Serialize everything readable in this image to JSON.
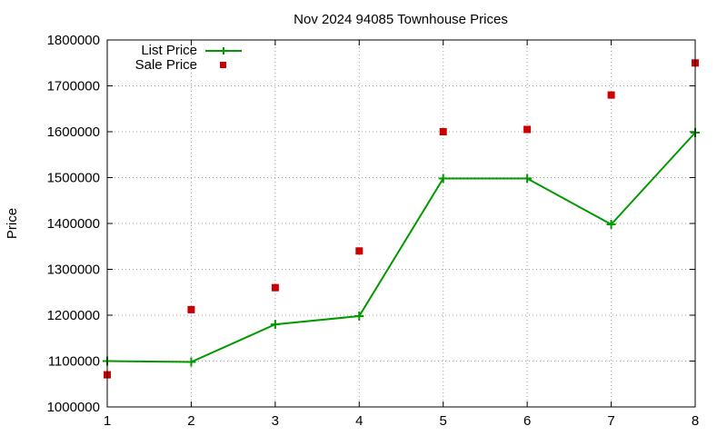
{
  "chart_data": {
    "type": "line",
    "title": "Nov 2024 94085 Townhouse Prices",
    "xlabel": "",
    "ylabel": "Price",
    "xlim": [
      1,
      8
    ],
    "ylim": [
      1000000,
      1800000
    ],
    "x_ticks": [
      "1",
      "2",
      "3",
      "4",
      "5",
      "6",
      "7",
      "8"
    ],
    "y_ticks": [
      "1000000",
      "1100000",
      "1200000",
      "1300000",
      "1400000",
      "1500000",
      "1600000",
      "1700000",
      "1800000"
    ],
    "grid": true,
    "legend_position": "top-left",
    "series": [
      {
        "name": "List Price",
        "style": "line-with-plus-markers",
        "color": "#009900",
        "x": [
          1,
          2,
          3,
          4,
          5,
          6,
          7,
          8
        ],
        "values": [
          1100000,
          1098000,
          1180000,
          1198000,
          1498000,
          1498000,
          1398000,
          1598000
        ]
      },
      {
        "name": "Sale Price",
        "style": "square-markers",
        "color": "#cc0000",
        "x": [
          1,
          2,
          3,
          4,
          5,
          6,
          7,
          8
        ],
        "values": [
          1070000,
          1212000,
          1260000,
          1340000,
          1600000,
          1605000,
          1680000,
          1750000
        ]
      }
    ]
  }
}
